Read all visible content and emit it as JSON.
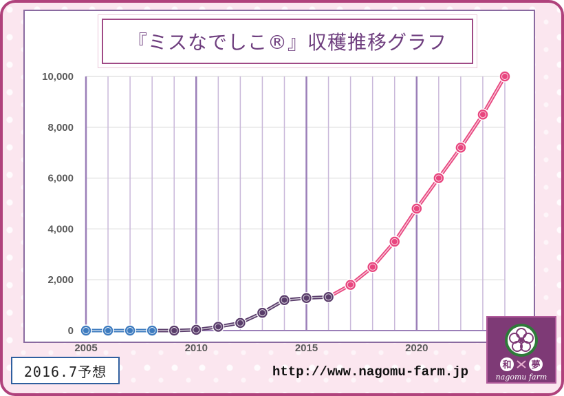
{
  "title": "『ミスなでしこ®』収穫推移グラフ",
  "note": "2016.7予想",
  "url": "http://www.nagomu-farm.jp",
  "logo": {
    "kanji_left": "和",
    "kanji_right": "夢",
    "text": "nagomu farm"
  },
  "colors": {
    "actual_early": "#3d7bbf",
    "actual_recent": "#5a3d6b",
    "forecast": "#e8467f",
    "frame": "#b0427c"
  },
  "chart_data": {
    "type": "line",
    "title": "『ミスなでしこ®』収穫推移グラフ",
    "xlabel": "",
    "ylabel": "",
    "xlim": [
      2005,
      2024
    ],
    "ylim": [
      0,
      10000
    ],
    "x_ticks": [
      2005,
      2010,
      2015,
      2020
    ],
    "y_ticks": [
      0,
      2000,
      4000,
      6000,
      8000,
      10000
    ],
    "y_tick_labels": [
      "0",
      "2,000",
      "4,000",
      "6,000",
      "8,000",
      "10,000"
    ],
    "grid": true,
    "legend": "none",
    "series": [
      {
        "x": [
          2005,
          2006,
          2007,
          2008
        ],
        "values": [
          0,
          0,
          0,
          0
        ],
        "color": "#3d7bbf"
      },
      {
        "x": [
          2009,
          2010,
          2011,
          2012,
          2013,
          2014,
          2015,
          2016
        ],
        "values": [
          0,
          30,
          150,
          300,
          700,
          1200,
          1280,
          1320
        ],
        "color": "#5a3d6b"
      },
      {
        "x": [
          2017,
          2018,
          2019,
          2020,
          2021,
          2022,
          2023,
          2024
        ],
        "values": [
          1800,
          2500,
          3500,
          4800,
          6000,
          7200,
          8500,
          10000
        ],
        "color": "#e8467f"
      }
    ]
  }
}
